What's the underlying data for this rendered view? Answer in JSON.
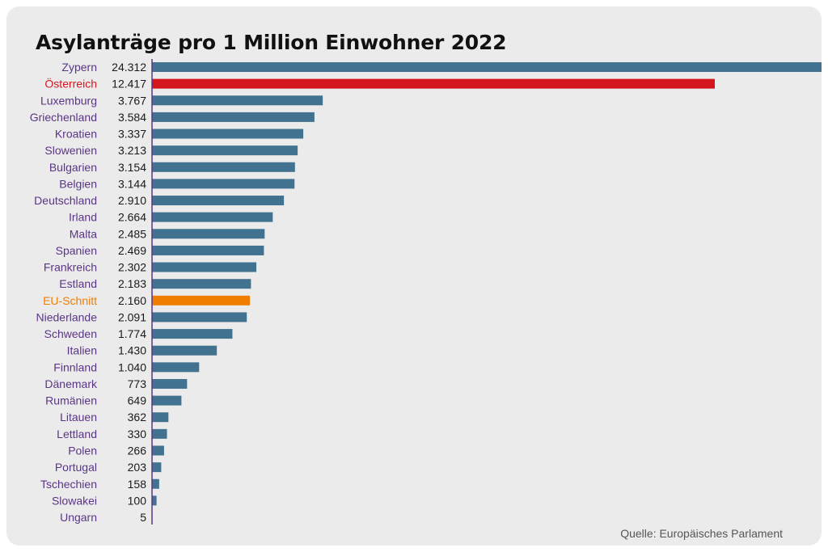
{
  "title": "Asylanträge pro 1 Million Einwohner 2022",
  "source": "Quelle: Europäisches Parlament",
  "colors": {
    "bar_default": "#41728f",
    "bar_austria": "#d4161e",
    "bar_eu": "#f07d00",
    "label_default": "#5a3585",
    "label_austria": "#d4161e",
    "label_eu": "#f07d00",
    "axis": "#5a3585",
    "value_text": "#1a1a1a",
    "background": "#ebebec"
  },
  "chart_data": {
    "type": "bar",
    "orientation": "horizontal",
    "title": "Asylanträge pro 1 Million Einwohner 2022",
    "categories": [
      "Zypern",
      "Österreich",
      "Luxemburg",
      "Griechenland",
      "Kroatien",
      "Slowenien",
      "Bulgarien",
      "Belgien",
      "Deutschland",
      "Irland",
      "Malta",
      "Spanien",
      "Frankreich",
      "Estland",
      "EU-Schnitt",
      "Niederlande",
      "Schweden",
      "Italien",
      "Finnland",
      "Dänemark",
      "Rumänien",
      "Litauen",
      "Lettland",
      "Polen",
      "Portugal",
      "Tschechien",
      "Slowakei",
      "Ungarn"
    ],
    "values": [
      24312,
      12417,
      3767,
      3584,
      3337,
      3213,
      3154,
      3144,
      2910,
      2664,
      2485,
      2469,
      2302,
      2183,
      2160,
      2091,
      1774,
      1430,
      1040,
      773,
      649,
      362,
      330,
      266,
      203,
      158,
      100,
      5
    ],
    "value_labels": [
      "24.312",
      "12.417",
      "3.767",
      "3.584",
      "3.337",
      "3.213",
      "3.154",
      "3.144",
      "2.910",
      "2.664",
      "2.485",
      "2.469",
      "2.302",
      "2.183",
      "2.160",
      "2.091",
      "1.774",
      "1.430",
      "1.040",
      "773",
      "649",
      "362",
      "330",
      "266",
      "203",
      "158",
      "100",
      "5"
    ],
    "highlight": {
      "Österreich": "austria",
      "EU-Schnitt": "eu"
    },
    "xlim": [
      0,
      12417
    ],
    "grid": false,
    "legend": "none"
  }
}
